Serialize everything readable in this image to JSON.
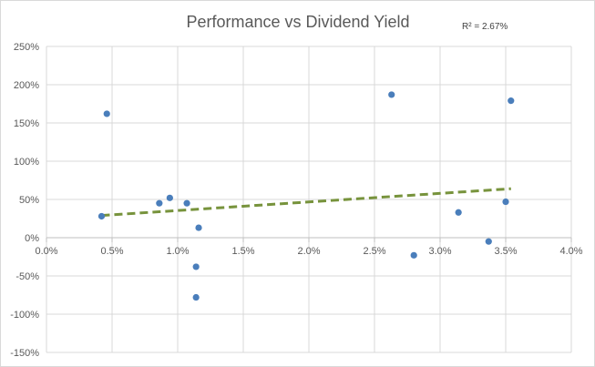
{
  "chart_data": {
    "type": "scatter",
    "title": "Performance vs Dividend Yield",
    "xlabel": "",
    "ylabel": "",
    "xlim": [
      0,
      4
    ],
    "ylim": [
      -150,
      250
    ],
    "x_ticks": [
      0,
      0.5,
      1,
      1.5,
      2,
      2.5,
      3,
      3.5,
      4
    ],
    "x_tick_labels": [
      "0.0%",
      "0.5%",
      "1.0%",
      "1.5%",
      "2.0%",
      "2.5%",
      "3.0%",
      "3.5%",
      "4.0%"
    ],
    "y_ticks": [
      250,
      200,
      150,
      100,
      50,
      0,
      -50,
      -100,
      -150
    ],
    "y_tick_labels": [
      "250%",
      "200%",
      "150%",
      "100%",
      "50%",
      "0%",
      "-50%",
      "-100%",
      "-150%"
    ],
    "grid": true,
    "legend": "none",
    "series": [
      {
        "color": "#4a7ebb",
        "points": [
          {
            "x": 0.42,
            "y": 28
          },
          {
            "x": 0.46,
            "y": 162
          },
          {
            "x": 0.86,
            "y": 45
          },
          {
            "x": 0.94,
            "y": 52
          },
          {
            "x": 1.07,
            "y": 45
          },
          {
            "x": 1.14,
            "y": -38
          },
          {
            "x": 1.14,
            "y": -78
          },
          {
            "x": 1.16,
            "y": 13
          },
          {
            "x": 2.63,
            "y": 187
          },
          {
            "x": 2.8,
            "y": -23
          },
          {
            "x": 3.14,
            "y": 33
          },
          {
            "x": 3.37,
            "y": -5
          },
          {
            "x": 3.5,
            "y": 47
          },
          {
            "x": 3.54,
            "y": 179
          }
        ]
      }
    ],
    "trendline": {
      "type": "linear",
      "color": "#77933c",
      "style": "dashed",
      "x_start": 0.42,
      "y_start": 29,
      "x_end": 3.54,
      "y_end": 64,
      "r_squared_label": "R² = 2.67%"
    }
  }
}
